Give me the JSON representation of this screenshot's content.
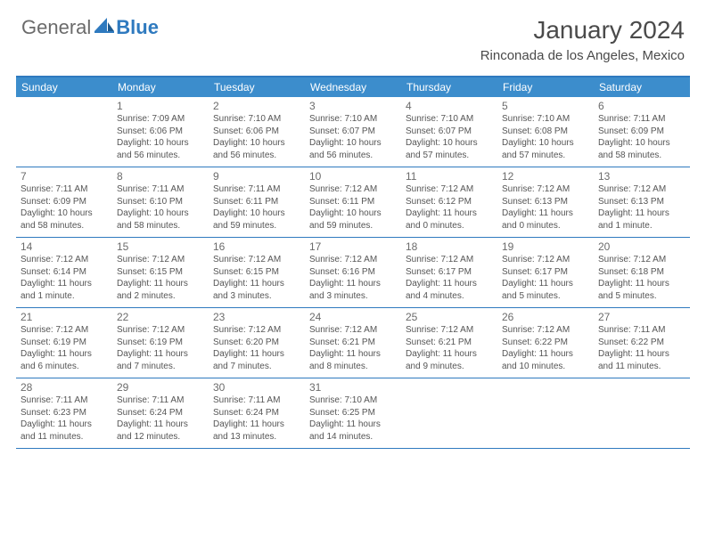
{
  "brand": {
    "general": "General",
    "blue": "Blue"
  },
  "title": "January 2024",
  "location": "Rinconada de los Angeles, Mexico",
  "colors": {
    "header_bg": "#3c8dcc",
    "border": "#2f7abf",
    "text": "#555555",
    "daynum": "#6b6b6b",
    "title": "#4a4a4a"
  },
  "dow": [
    "Sunday",
    "Monday",
    "Tuesday",
    "Wednesday",
    "Thursday",
    "Friday",
    "Saturday"
  ],
  "weeks": [
    [
      null,
      {
        "n": "1",
        "sr": "Sunrise: 7:09 AM",
        "ss": "Sunset: 6:06 PM",
        "d1": "Daylight: 10 hours",
        "d2": "and 56 minutes."
      },
      {
        "n": "2",
        "sr": "Sunrise: 7:10 AM",
        "ss": "Sunset: 6:06 PM",
        "d1": "Daylight: 10 hours",
        "d2": "and 56 minutes."
      },
      {
        "n": "3",
        "sr": "Sunrise: 7:10 AM",
        "ss": "Sunset: 6:07 PM",
        "d1": "Daylight: 10 hours",
        "d2": "and 56 minutes."
      },
      {
        "n": "4",
        "sr": "Sunrise: 7:10 AM",
        "ss": "Sunset: 6:07 PM",
        "d1": "Daylight: 10 hours",
        "d2": "and 57 minutes."
      },
      {
        "n": "5",
        "sr": "Sunrise: 7:10 AM",
        "ss": "Sunset: 6:08 PM",
        "d1": "Daylight: 10 hours",
        "d2": "and 57 minutes."
      },
      {
        "n": "6",
        "sr": "Sunrise: 7:11 AM",
        "ss": "Sunset: 6:09 PM",
        "d1": "Daylight: 10 hours",
        "d2": "and 58 minutes."
      }
    ],
    [
      {
        "n": "7",
        "sr": "Sunrise: 7:11 AM",
        "ss": "Sunset: 6:09 PM",
        "d1": "Daylight: 10 hours",
        "d2": "and 58 minutes."
      },
      {
        "n": "8",
        "sr": "Sunrise: 7:11 AM",
        "ss": "Sunset: 6:10 PM",
        "d1": "Daylight: 10 hours",
        "d2": "and 58 minutes."
      },
      {
        "n": "9",
        "sr": "Sunrise: 7:11 AM",
        "ss": "Sunset: 6:11 PM",
        "d1": "Daylight: 10 hours",
        "d2": "and 59 minutes."
      },
      {
        "n": "10",
        "sr": "Sunrise: 7:12 AM",
        "ss": "Sunset: 6:11 PM",
        "d1": "Daylight: 10 hours",
        "d2": "and 59 minutes."
      },
      {
        "n": "11",
        "sr": "Sunrise: 7:12 AM",
        "ss": "Sunset: 6:12 PM",
        "d1": "Daylight: 11 hours",
        "d2": "and 0 minutes."
      },
      {
        "n": "12",
        "sr": "Sunrise: 7:12 AM",
        "ss": "Sunset: 6:13 PM",
        "d1": "Daylight: 11 hours",
        "d2": "and 0 minutes."
      },
      {
        "n": "13",
        "sr": "Sunrise: 7:12 AM",
        "ss": "Sunset: 6:13 PM",
        "d1": "Daylight: 11 hours",
        "d2": "and 1 minute."
      }
    ],
    [
      {
        "n": "14",
        "sr": "Sunrise: 7:12 AM",
        "ss": "Sunset: 6:14 PM",
        "d1": "Daylight: 11 hours",
        "d2": "and 1 minute."
      },
      {
        "n": "15",
        "sr": "Sunrise: 7:12 AM",
        "ss": "Sunset: 6:15 PM",
        "d1": "Daylight: 11 hours",
        "d2": "and 2 minutes."
      },
      {
        "n": "16",
        "sr": "Sunrise: 7:12 AM",
        "ss": "Sunset: 6:15 PM",
        "d1": "Daylight: 11 hours",
        "d2": "and 3 minutes."
      },
      {
        "n": "17",
        "sr": "Sunrise: 7:12 AM",
        "ss": "Sunset: 6:16 PM",
        "d1": "Daylight: 11 hours",
        "d2": "and 3 minutes."
      },
      {
        "n": "18",
        "sr": "Sunrise: 7:12 AM",
        "ss": "Sunset: 6:17 PM",
        "d1": "Daylight: 11 hours",
        "d2": "and 4 minutes."
      },
      {
        "n": "19",
        "sr": "Sunrise: 7:12 AM",
        "ss": "Sunset: 6:17 PM",
        "d1": "Daylight: 11 hours",
        "d2": "and 5 minutes."
      },
      {
        "n": "20",
        "sr": "Sunrise: 7:12 AM",
        "ss": "Sunset: 6:18 PM",
        "d1": "Daylight: 11 hours",
        "d2": "and 5 minutes."
      }
    ],
    [
      {
        "n": "21",
        "sr": "Sunrise: 7:12 AM",
        "ss": "Sunset: 6:19 PM",
        "d1": "Daylight: 11 hours",
        "d2": "and 6 minutes."
      },
      {
        "n": "22",
        "sr": "Sunrise: 7:12 AM",
        "ss": "Sunset: 6:19 PM",
        "d1": "Daylight: 11 hours",
        "d2": "and 7 minutes."
      },
      {
        "n": "23",
        "sr": "Sunrise: 7:12 AM",
        "ss": "Sunset: 6:20 PM",
        "d1": "Daylight: 11 hours",
        "d2": "and 7 minutes."
      },
      {
        "n": "24",
        "sr": "Sunrise: 7:12 AM",
        "ss": "Sunset: 6:21 PM",
        "d1": "Daylight: 11 hours",
        "d2": "and 8 minutes."
      },
      {
        "n": "25",
        "sr": "Sunrise: 7:12 AM",
        "ss": "Sunset: 6:21 PM",
        "d1": "Daylight: 11 hours",
        "d2": "and 9 minutes."
      },
      {
        "n": "26",
        "sr": "Sunrise: 7:12 AM",
        "ss": "Sunset: 6:22 PM",
        "d1": "Daylight: 11 hours",
        "d2": "and 10 minutes."
      },
      {
        "n": "27",
        "sr": "Sunrise: 7:11 AM",
        "ss": "Sunset: 6:22 PM",
        "d1": "Daylight: 11 hours",
        "d2": "and 11 minutes."
      }
    ],
    [
      {
        "n": "28",
        "sr": "Sunrise: 7:11 AM",
        "ss": "Sunset: 6:23 PM",
        "d1": "Daylight: 11 hours",
        "d2": "and 11 minutes."
      },
      {
        "n": "29",
        "sr": "Sunrise: 7:11 AM",
        "ss": "Sunset: 6:24 PM",
        "d1": "Daylight: 11 hours",
        "d2": "and 12 minutes."
      },
      {
        "n": "30",
        "sr": "Sunrise: 7:11 AM",
        "ss": "Sunset: 6:24 PM",
        "d1": "Daylight: 11 hours",
        "d2": "and 13 minutes."
      },
      {
        "n": "31",
        "sr": "Sunrise: 7:10 AM",
        "ss": "Sunset: 6:25 PM",
        "d1": "Daylight: 11 hours",
        "d2": "and 14 minutes."
      },
      null,
      null,
      null
    ]
  ]
}
